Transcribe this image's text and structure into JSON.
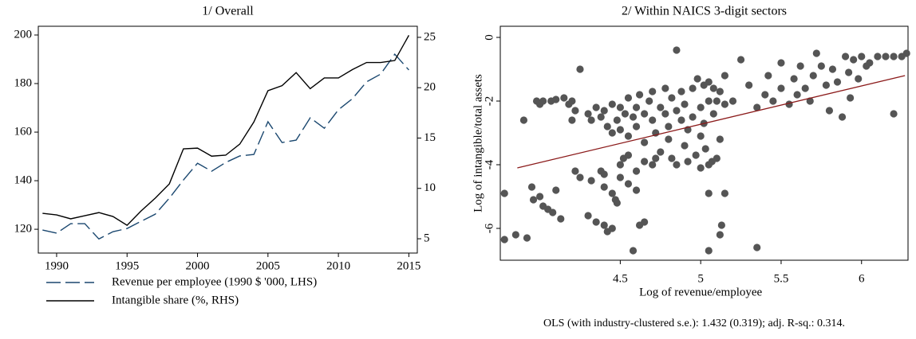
{
  "chart_data": [
    {
      "type": "line",
      "title": "1/ Overall",
      "x": [
        1989,
        1990,
        1991,
        1992,
        1993,
        1994,
        1995,
        1996,
        1997,
        1998,
        1999,
        2000,
        2001,
        2002,
        2003,
        2004,
        2005,
        2006,
        2007,
        2008,
        2009,
        2010,
        2011,
        2012,
        2013,
        2014,
        2015
      ],
      "xlim": [
        1988.7,
        2015.6
      ],
      "xticks": [
        1990,
        1995,
        2000,
        2005,
        2010,
        2015
      ],
      "ylim": [
        110.2,
        203.6
      ],
      "yticks": [
        120,
        140,
        160,
        180,
        200
      ],
      "y2lim": [
        3.58,
        26.1
      ],
      "y2ticks": [
        5,
        10,
        15,
        20,
        25
      ],
      "series": [
        {
          "name": "Revenue per employee (1990 $ '000, LHS)",
          "color": "#1a476f",
          "dashed": true,
          "values": [
            119.7,
            118.4,
            122.3,
            122.3,
            116,
            119,
            120.3,
            123.3,
            126.2,
            132.8,
            140.3,
            147.2,
            143.9,
            147.5,
            150.2,
            150.8,
            164.3,
            155.7,
            156.7,
            165.9,
            161.6,
            169.2,
            173.8,
            180.7,
            183.9,
            192.1,
            185.6
          ]
        },
        {
          "name": "Intangible share (%, RHS)",
          "color": "#000000",
          "dashed": false,
          "axis": "y2",
          "values": [
            7.53,
            7.37,
            6.98,
            7.29,
            7.6,
            7.21,
            6.34,
            7.77,
            9.03,
            10.45,
            13.93,
            14.0,
            13.2,
            13.3,
            14.4,
            16.6,
            19.7,
            20.2,
            21.5,
            19.9,
            20.97,
            20.97,
            21.8,
            22.5,
            22.5,
            22.7,
            25.2
          ]
        }
      ]
    },
    {
      "type": "scatter",
      "title": "2/ Within NAICS 3-digit sectors",
      "x_label": "Log of revenue/employee",
      "y_label": "Log of intangible/total assets",
      "note": "OLS (with industry-clustered s.e.): 1.432 (0.319); adj. R-sq.: 0.314.",
      "color": "#555555",
      "xlim": [
        3.754,
        6.289
      ],
      "xticks": [
        4.5,
        5,
        5.5,
        6
      ],
      "ylim": [
        -7.0,
        0.35
      ],
      "yticks": [
        0,
        -2,
        -4,
        -6
      ],
      "x": [
        3.78,
        3.78,
        3.85,
        3.92,
        3.9,
        3.96,
        3.95,
        4.0,
        4.02,
        4.05,
        4.08,
        4.1,
        4.13,
        3.98,
        4.0,
        4.02,
        4.07,
        4.1,
        4.15,
        4.18,
        4.2,
        4.2,
        4.22,
        4.25,
        4.25,
        4.22,
        4.3,
        4.32,
        4.35,
        4.38,
        4.4,
        4.4,
        4.42,
        4.45,
        4.4,
        4.45,
        4.47,
        4.48,
        4.5,
        4.55,
        4.6,
        4.58,
        4.62,
        4.65,
        4.5,
        4.52,
        4.55,
        4.3,
        4.32,
        4.35,
        4.38,
        4.4,
        4.42,
        4.45,
        4.45,
        4.48,
        4.5,
        4.5,
        4.53,
        4.55,
        4.55,
        4.58,
        4.6,
        4.6,
        4.62,
        4.65,
        4.65,
        4.68,
        4.7,
        4.7,
        4.72,
        4.75,
        4.75,
        4.78,
        4.78,
        4.8,
        4.8,
        4.82,
        4.82,
        4.85,
        4.85,
        4.85,
        4.88,
        4.88,
        4.9,
        4.9,
        4.92,
        4.92,
        4.95,
        4.95,
        4.97,
        4.98,
        5.0,
        5.0,
        5.0,
        5.02,
        5.02,
        5.03,
        5.05,
        5.05,
        5.05,
        5.07,
        5.08,
        5.08,
        5.1,
        5.1,
        5.12,
        5.12,
        5.15,
        5.15,
        4.7,
        4.72,
        4.65,
        4.6,
        5.05,
        5.05,
        5.12,
        5.13,
        5.15,
        5.35,
        5.2,
        5.25,
        5.3,
        5.35,
        5.4,
        5.42,
        5.45,
        5.5,
        5.5,
        5.55,
        5.58,
        5.6,
        5.62,
        5.65,
        5.68,
        5.7,
        5.72,
        5.75,
        5.78,
        5.8,
        5.82,
        5.85,
        5.88,
        5.9,
        5.92,
        5.95,
        5.98,
        6.0,
        6.03,
        6.05,
        6.1,
        6.15,
        6.2,
        6.2,
        6.25,
        6.28,
        5.93
      ],
      "values": [
        -4.9,
        -6.35,
        -6.2,
        -6.3,
        -2.6,
        -5.1,
        -4.7,
        -5.0,
        -5.3,
        -5.4,
        -5.5,
        -4.8,
        -5.7,
        -2.0,
        -2.1,
        -2.0,
        -2.0,
        -1.95,
        -1.9,
        -2.1,
        -2.0,
        -2.6,
        -4.2,
        -4.4,
        -1.0,
        -2.3,
        -5.6,
        -4.5,
        -5.8,
        -4.2,
        -4.3,
        -5.9,
        -6.1,
        -6.0,
        -4.7,
        -4.9,
        -5.1,
        -5.2,
        -4.4,
        -4.6,
        -4.8,
        -6.7,
        -5.9,
        -5.8,
        -4.0,
        -3.8,
        -3.7,
        -2.4,
        -2.6,
        -2.2,
        -2.5,
        -2.3,
        -2.8,
        -2.1,
        -3.0,
        -2.6,
        -2.2,
        -2.9,
        -2.4,
        -1.9,
        -3.1,
        -2.5,
        -2.2,
        -2.8,
        -1.8,
        -2.4,
        -3.3,
        -2.0,
        -2.6,
        -1.7,
        -3.0,
        -2.2,
        -3.6,
        -1.6,
        -2.4,
        -2.8,
        -3.2,
        -1.9,
        -3.8,
        -2.3,
        -0.4,
        -4.0,
        -2.6,
        -1.7,
        -3.4,
        -2.1,
        -2.9,
        -3.9,
        -1.6,
        -2.5,
        -3.7,
        -1.3,
        -2.2,
        -3.1,
        -4.1,
        -1.5,
        -2.7,
        -3.5,
        -1.4,
        -2.0,
        -4.0,
        -3.9,
        -1.6,
        -2.4,
        -3.8,
        -2.0,
        -1.7,
        -3.2,
        -2.1,
        -1.2,
        -4.0,
        -3.8,
        -3.9,
        -4.2,
        -4.9,
        -6.7,
        -6.2,
        -5.9,
        -4.9,
        -6.6,
        -2.0,
        -0.7,
        -1.5,
        -2.2,
        -1.8,
        -1.2,
        -2.0,
        -0.8,
        -1.6,
        -2.1,
        -1.3,
        -1.8,
        -0.9,
        -1.6,
        -2.0,
        -1.2,
        -0.5,
        -0.9,
        -1.5,
        -2.3,
        -1.0,
        -1.4,
        -2.5,
        -0.6,
        -1.1,
        -0.7,
        -1.3,
        -0.6,
        -0.9,
        -0.8,
        -0.6,
        -0.6,
        -2.4,
        -0.6,
        -0.6,
        -0.5,
        -1.9
      ],
      "fit": {
        "x": [
          3.86,
          6.27
        ],
        "values": [
          -4.1,
          -1.2
        ],
        "color": "#8b1a1a"
      }
    }
  ]
}
